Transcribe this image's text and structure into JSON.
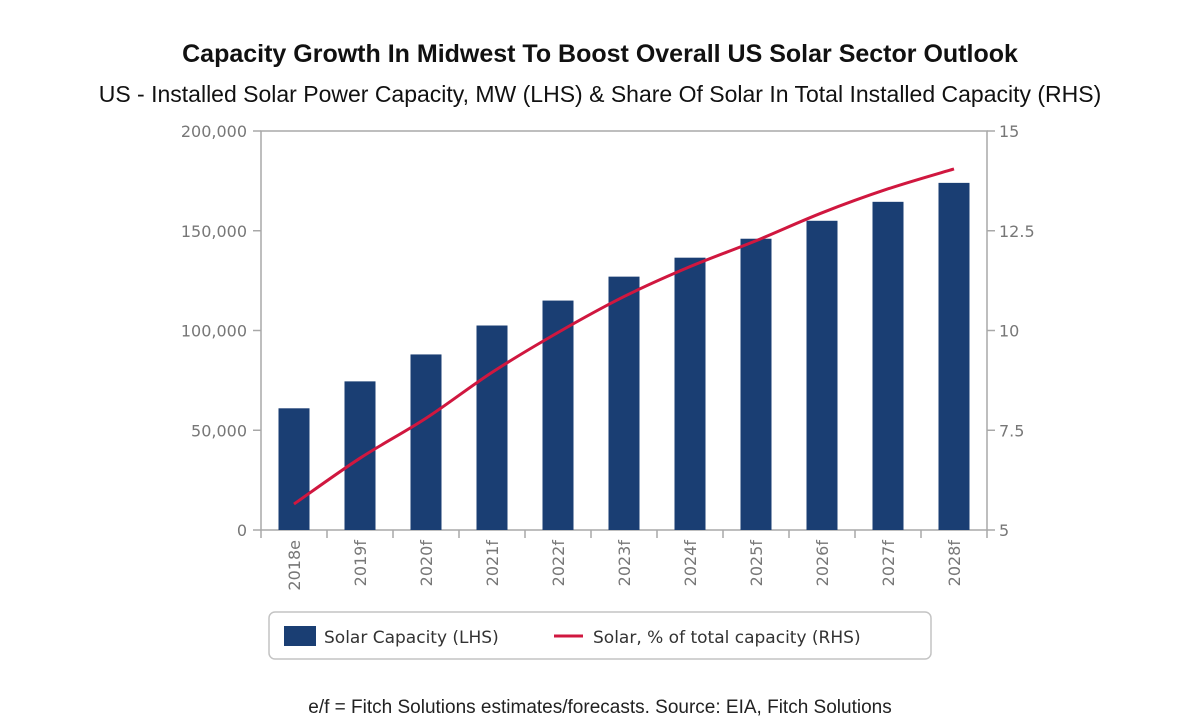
{
  "title": "Capacity Growth In Midwest To Boost Overall US Solar Sector Outlook",
  "subtitle": "US - Installed Solar Power Capacity, MW (LHS) & Share Of Solar In Total Installed Capacity (RHS)",
  "footnote": "e/f = Fitch Solutions estimates/forecasts. Source: EIA, Fitch Solutions",
  "colors": {
    "bar": "#1a3e73",
    "line": "#d0173f",
    "axis": "#a8a8a8"
  },
  "chart_data": {
    "type": "bar",
    "categories": [
      "2018e",
      "2019f",
      "2020f",
      "2021f",
      "2022f",
      "2023f",
      "2024f",
      "2025f",
      "2026f",
      "2027f",
      "2028f"
    ],
    "series": [
      {
        "name": "Solar Capacity (LHS)",
        "type": "bar",
        "axis": "left",
        "values": [
          61000,
          74500,
          88000,
          102500,
          115000,
          127000,
          136500,
          146000,
          155000,
          164500,
          174000
        ]
      },
      {
        "name": "Solar, % of total capacity (RHS)",
        "type": "line",
        "axis": "right",
        "values": [
          5.65,
          6.8,
          7.8,
          8.95,
          9.95,
          10.85,
          11.6,
          12.25,
          12.95,
          13.55,
          14.05
        ]
      }
    ],
    "left_axis": {
      "range": [
        0,
        200000
      ],
      "ticks": [
        0,
        50000,
        100000,
        150000,
        200000
      ],
      "tick_labels": [
        "0",
        "50,000",
        "100,000",
        "150,000",
        "200,000"
      ]
    },
    "right_axis": {
      "range": [
        5,
        15
      ],
      "ticks": [
        5,
        7.5,
        10,
        12.5,
        15
      ],
      "tick_labels": [
        "5",
        "7.5",
        "10",
        "12.5",
        "15"
      ]
    },
    "grid": false,
    "legend_position": "bottom"
  }
}
